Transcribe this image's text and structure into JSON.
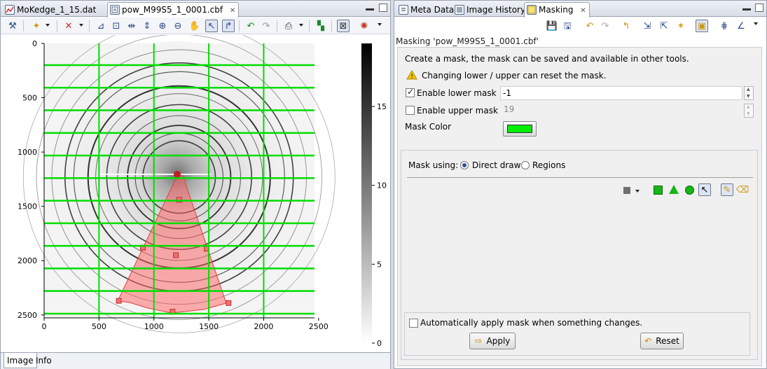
{
  "left_pane": {
    "tabs": [
      {
        "label": "MoKedge_1_15.dat",
        "icon": "line-plot-icon"
      },
      {
        "label": "pow_M99S5_1_0001.cbf",
        "icon": "image-file-icon"
      }
    ],
    "bottom_tabs": [
      "Image",
      "Info"
    ]
  },
  "right_pane": {
    "tabs": [
      {
        "label": "Meta Data",
        "icon": "metadata-icon"
      },
      {
        "label": "Image History",
        "icon": "history-icon"
      },
      {
        "label": "Masking",
        "icon": "masking-icon"
      }
    ],
    "title": "Masking 'pow_M99S5_1_0001.cbf'",
    "description": "Create a mask, the mask can be saved and available in other tools.",
    "warning": "Changing lower / upper can reset the mask.",
    "lower_mask": {
      "label": "Enable lower mask",
      "checked": true,
      "value": "-1"
    },
    "upper_mask": {
      "label": "Enable upper mask",
      "checked": false,
      "value": "19"
    },
    "mask_color": {
      "label": "Mask Color",
      "color": "#00ee00"
    },
    "mask_using": {
      "label": "Mask using:",
      "options": [
        "Direct draw",
        "Regions"
      ],
      "selected": "Direct draw"
    },
    "auto_apply": {
      "label": "Automatically apply mask when something changes.",
      "checked": false
    },
    "apply_label": "Apply",
    "reset_label": "Reset"
  },
  "image_plot": {
    "x_ticks": [
      "0",
      "500",
      "1000",
      "1500",
      "2000",
      "2500"
    ],
    "y_ticks": [
      "0",
      "500",
      "1000",
      "1500",
      "2000",
      "2500"
    ],
    "colorbar_ticks": [
      "15",
      "10",
      "5",
      "0"
    ],
    "colorbar_range": [
      0,
      19
    ],
    "grid_color": "#00dd00",
    "mask_fill_color": "#ff6060",
    "image_size": [
      2463,
      2527
    ],
    "beam_center": [
      1230,
      1230
    ]
  }
}
